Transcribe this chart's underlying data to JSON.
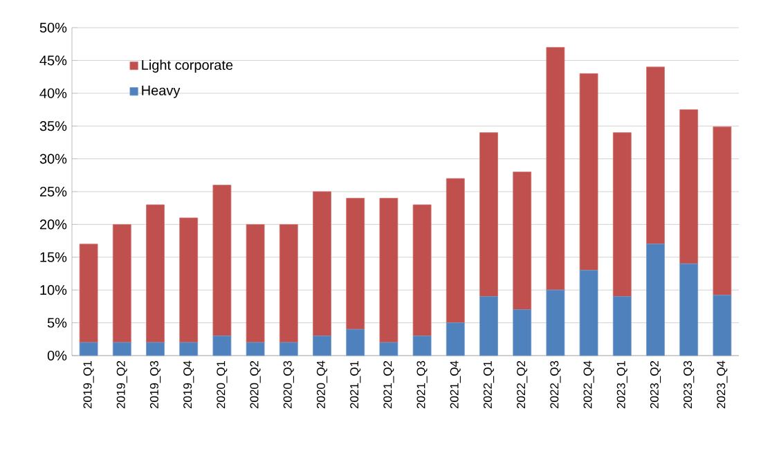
{
  "chart_data": {
    "type": "bar",
    "stacked": true,
    "categories": [
      "2019_Q1",
      "2019_Q2",
      "2019_Q3",
      "2019_Q4",
      "2020_Q1",
      "2020_Q2",
      "2020_Q3",
      "2020_Q4",
      "2021_Q1",
      "2021_Q2",
      "2021_Q3",
      "2021_Q4",
      "2022_Q1",
      "2022_Q2",
      "2022_Q3",
      "2022_Q4",
      "2023_Q1",
      "2023_Q2",
      "2023_Q3",
      "2023_Q4"
    ],
    "series": [
      {
        "name": "Heavy",
        "color": "#4f81bd",
        "values": [
          2,
          2,
          2,
          2,
          3,
          2,
          2,
          3,
          4,
          2,
          3,
          5,
          9,
          7,
          10,
          13,
          9,
          17,
          14,
          9.2
        ]
      },
      {
        "name": "Light corporate",
        "color": "#c0504d",
        "values": [
          15,
          18,
          21,
          19,
          23,
          18,
          18,
          22,
          20,
          22,
          20,
          22,
          25,
          21,
          37,
          30,
          25,
          27,
          23.5,
          25.7
        ]
      }
    ],
    "ylim": [
      0,
      50
    ],
    "yticks": [
      {
        "value": 0,
        "label": "0%"
      },
      {
        "value": 5,
        "label": "5%"
      },
      {
        "value": 10,
        "label": "10%"
      },
      {
        "value": 15,
        "label": "15%"
      },
      {
        "value": 20,
        "label": "20%"
      },
      {
        "value": 25,
        "label": "25%"
      },
      {
        "value": 30,
        "label": "30%"
      },
      {
        "value": 35,
        "label": "35%"
      },
      {
        "value": 40,
        "label": "40%"
      },
      {
        "value": 45,
        "label": "45%"
      },
      {
        "value": 50,
        "label": "50%"
      }
    ],
    "grid": "y",
    "legend": "top left"
  }
}
